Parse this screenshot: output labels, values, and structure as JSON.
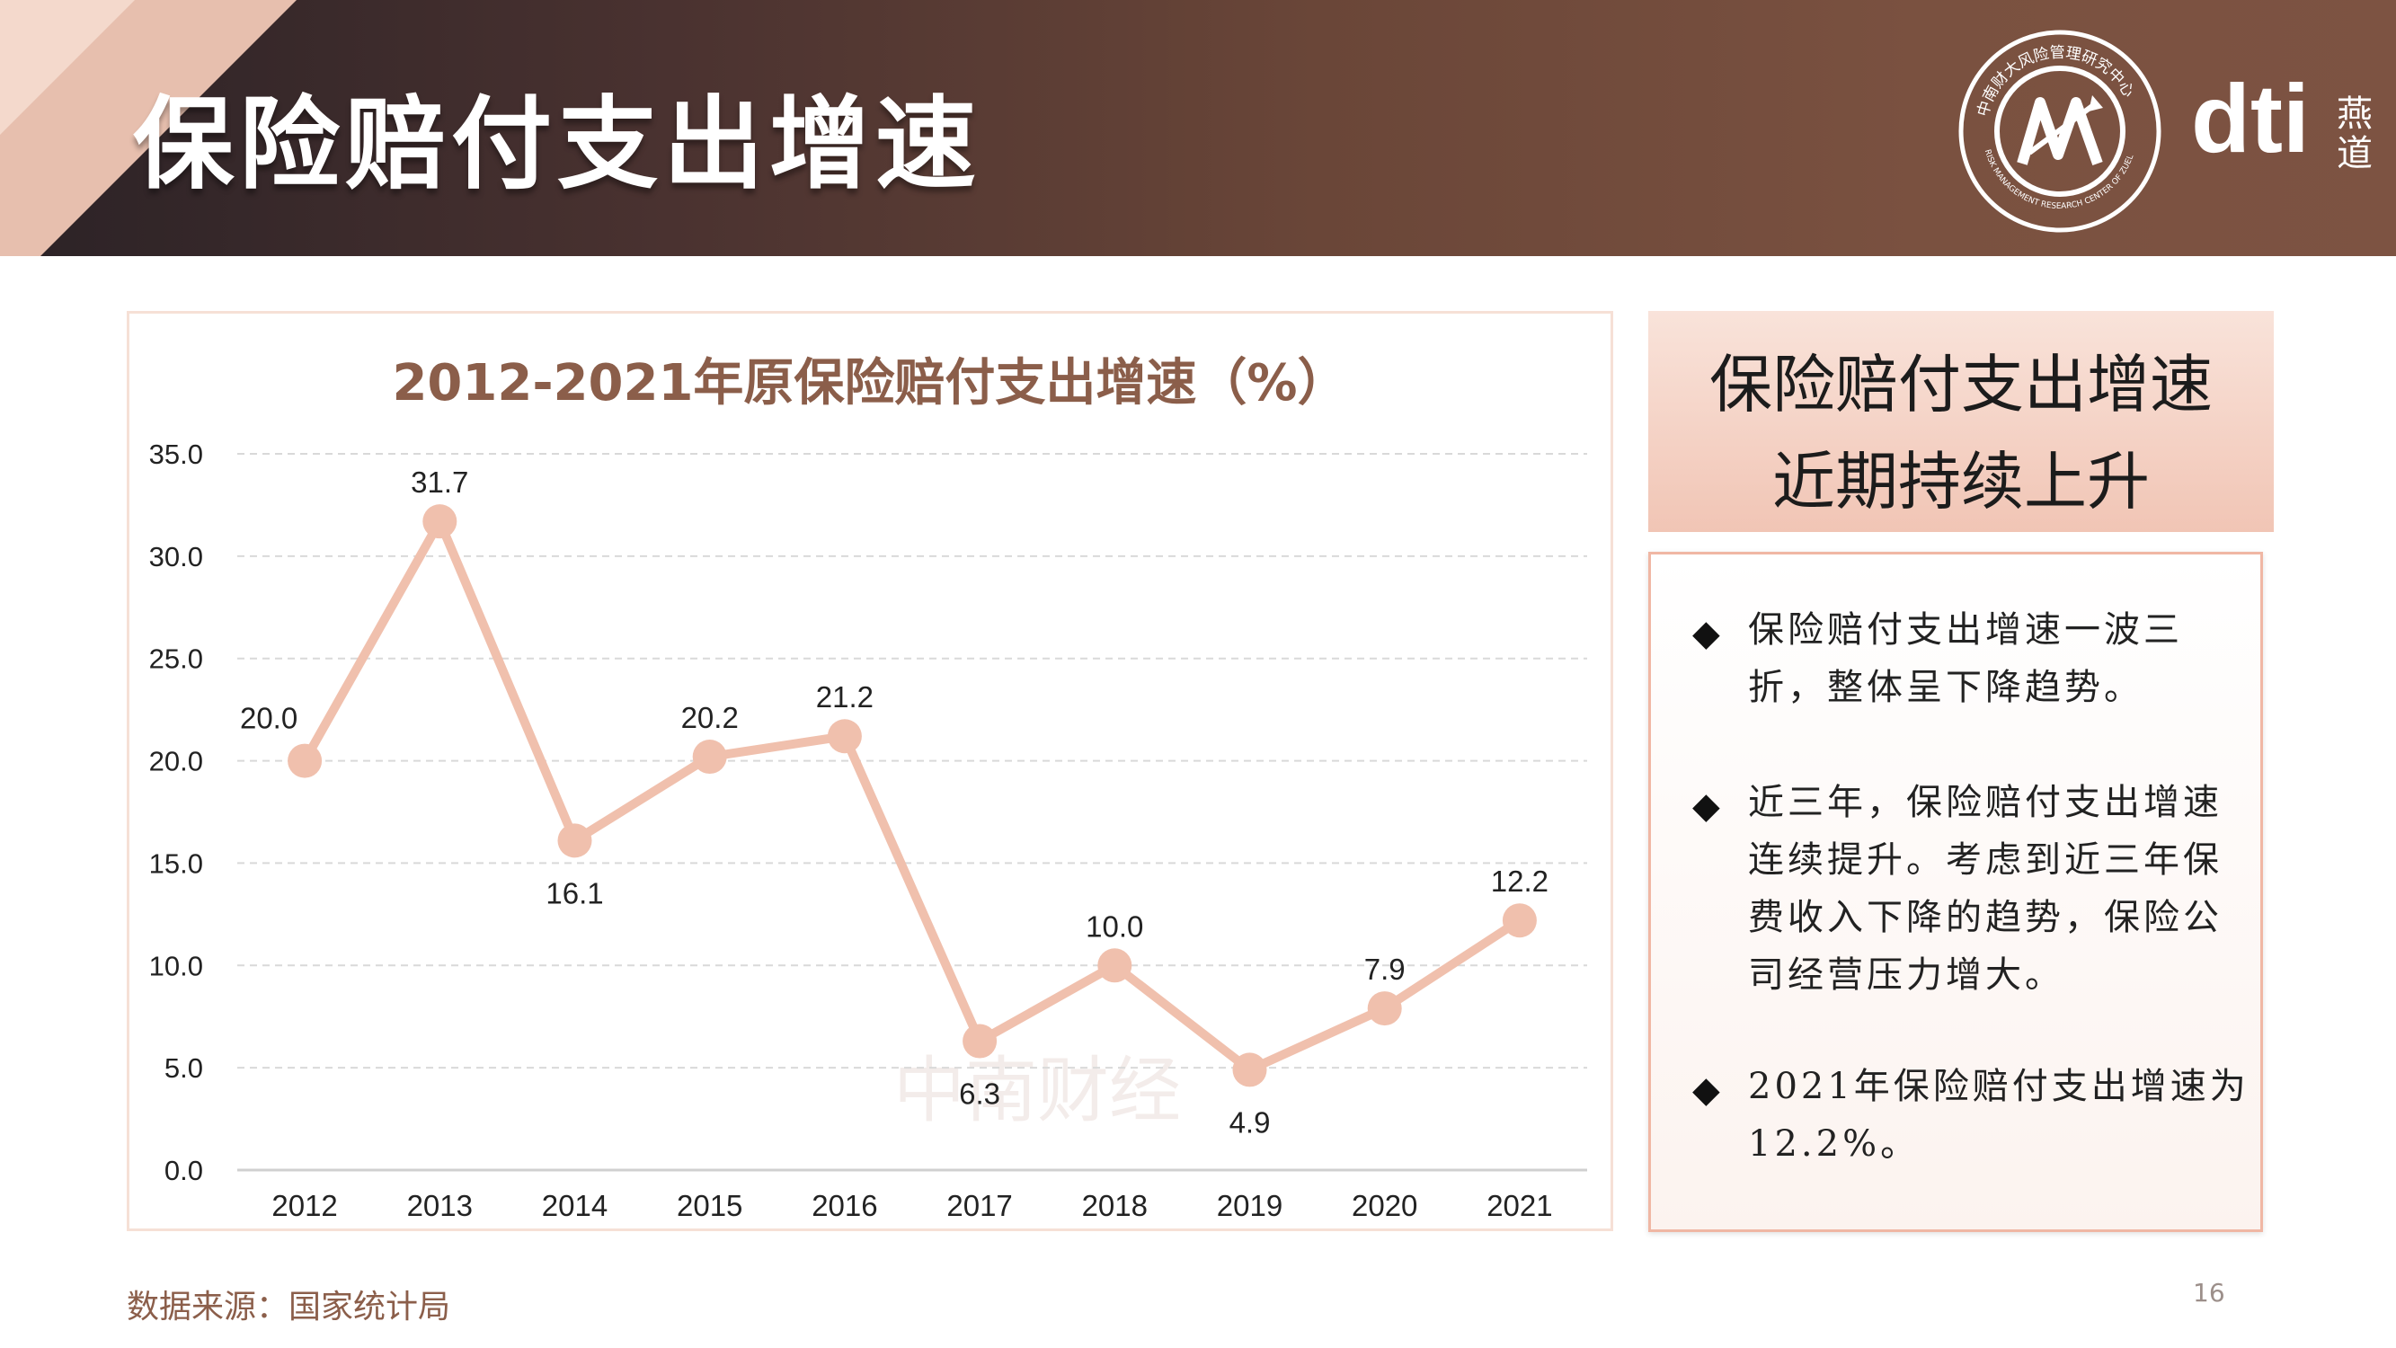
{
  "header": {
    "title": "保险赔付支出增速",
    "brand": "dti",
    "brand_cn": "燕道",
    "seal_text": "中南财大风险管理研究中心",
    "seal_text_en": "RISK MANAGEMENT RESEARCH CENTER OF ZUEL"
  },
  "chart_data": {
    "type": "line",
    "title": "2012-2021年原保险赔付支出增速（%）",
    "categories": [
      "2012",
      "2013",
      "2014",
      "2015",
      "2016",
      "2017",
      "2018",
      "2019",
      "2020",
      "2021"
    ],
    "series": [
      {
        "values": [
          20.0,
          31.7,
          16.1,
          20.2,
          21.2,
          6.3,
          10.0,
          4.9,
          7.9,
          12.2
        ]
      }
    ],
    "data_labels": [
      "20.0",
      "31.7",
      "16.1",
      "20.2",
      "21.2",
      "6.3",
      "10.0",
      "4.9",
      "7.9",
      "12.2"
    ],
    "y_ticks": [
      "0.0",
      "5.0",
      "10.0",
      "15.0",
      "20.0",
      "25.0",
      "30.0",
      "35.0"
    ],
    "ylim": [
      0,
      35
    ],
    "grid": true,
    "legend": "none",
    "line_color": "#f0c0ad"
  },
  "watermark": "中南财经",
  "summary": {
    "line1": "保险赔付支出增速",
    "line2": "近期持续上升"
  },
  "bullets": [
    {
      "symbol": "◆",
      "text": "保险赔付支出增速一波三折，整体呈下降趋势。"
    },
    {
      "symbol": "◆",
      "text": "近三年，保险赔付支出增速连续提升。考虑到近三年保费收入下降的趋势，保险公司经营压力增大。"
    },
    {
      "symbol": "◆",
      "text": "2021年保险赔付支出增速为12.2%。"
    }
  ],
  "footer": {
    "source": "数据来源：国家统计局",
    "page_number": "16"
  }
}
